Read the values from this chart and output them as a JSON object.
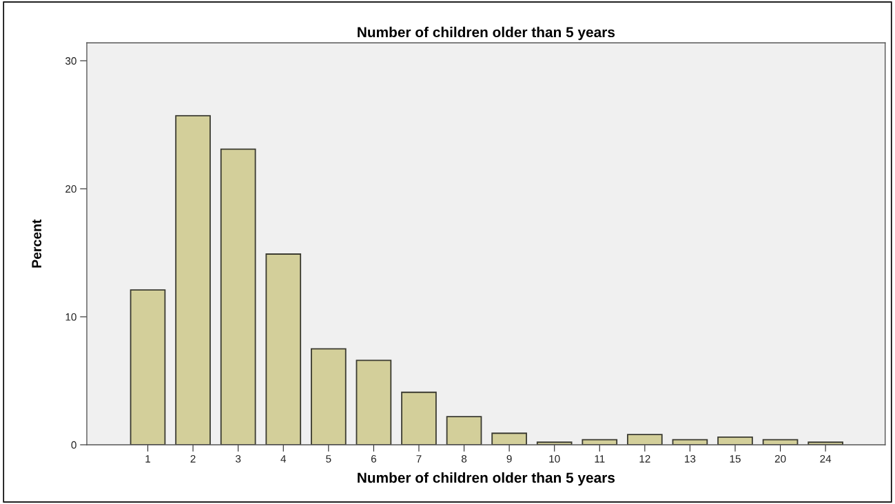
{
  "chart_data": {
    "type": "bar",
    "title": "Number of children older than 5 years",
    "xlabel": "Number of children older than 5 years",
    "ylabel": "Percent",
    "categories": [
      "1",
      "2",
      "3",
      "4",
      "5",
      "6",
      "7",
      "8",
      "9",
      "10",
      "11",
      "12",
      "13",
      "15",
      "20",
      "24"
    ],
    "values": [
      12.1,
      25.7,
      23.1,
      14.9,
      7.5,
      6.6,
      4.1,
      2.2,
      0.9,
      0.2,
      0.4,
      0.8,
      0.4,
      0.6,
      0.4,
      0.2
    ],
    "color": "#d3cf9a",
    "ylim": [
      0,
      31.4
    ],
    "yticks": [
      0,
      10,
      20,
      30
    ],
    "grid": false
  }
}
